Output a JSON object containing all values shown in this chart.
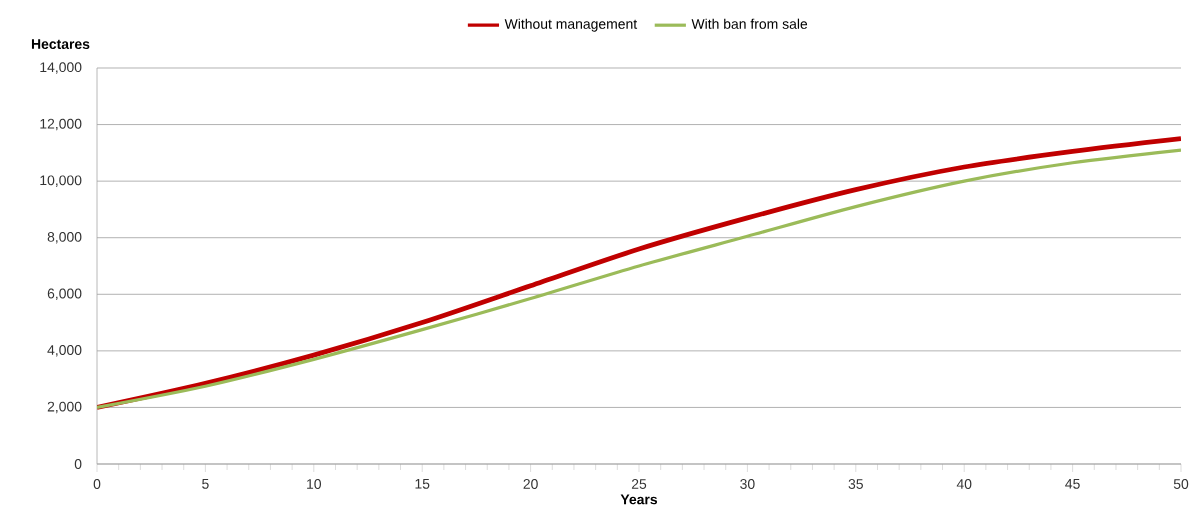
{
  "chart_data": {
    "type": "line",
    "xlabel": "Years",
    "ylabel": "Hectares",
    "x": [
      0,
      5,
      10,
      15,
      20,
      25,
      30,
      35,
      40,
      45,
      50
    ],
    "series": [
      {
        "name": "Without management",
        "color": "#c00000",
        "values": [
          2000,
          2850,
          3850,
          5000,
          6300,
          7600,
          8700,
          9700,
          10500,
          11050,
          11500
        ]
      },
      {
        "name": "With ban from sale",
        "color": "#9bbb59",
        "values": [
          2000,
          2750,
          3700,
          4750,
          5850,
          7000,
          8050,
          9100,
          10000,
          10650,
          11100
        ]
      }
    ],
    "xlim": [
      0,
      50
    ],
    "xticks": [
      0,
      5,
      10,
      15,
      20,
      25,
      30,
      35,
      40,
      45,
      50
    ],
    "ylim": [
      0,
      14000
    ],
    "yticks": [
      {
        "value": 0,
        "label": "0"
      },
      {
        "value": 2000,
        "label": "2,000"
      },
      {
        "value": 4000,
        "label": "4,000"
      },
      {
        "value": 6000,
        "label": "6,000"
      },
      {
        "value": 8000,
        "label": "8,000"
      },
      {
        "value": 10000,
        "label": "10,000"
      },
      {
        "value": 12000,
        "label": "12,000"
      },
      {
        "value": 14000,
        "label": "14,000"
      }
    ],
    "grid": "y",
    "legend": "top"
  }
}
